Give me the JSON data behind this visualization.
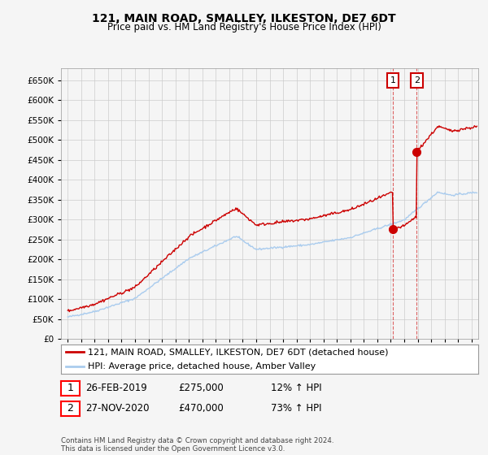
{
  "title": "121, MAIN ROAD, SMALLEY, ILKESTON, DE7 6DT",
  "subtitle": "Price paid vs. HM Land Registry's House Price Index (HPI)",
  "yticks": [
    0,
    50000,
    100000,
    150000,
    200000,
    250000,
    300000,
    350000,
    400000,
    450000,
    500000,
    550000,
    600000,
    650000
  ],
  "ylim": [
    0,
    680000
  ],
  "xlim_start": 1994.5,
  "xlim_end": 2025.5,
  "grid_color": "#cccccc",
  "background_color": "#f5f5f5",
  "plot_bg_color": "#f5f5f5",
  "red_line_color": "#cc0000",
  "blue_line_color": "#aaccee",
  "sale1_x": 2019.15,
  "sale1_y": 275000,
  "sale2_x": 2020.92,
  "sale2_y": 470000,
  "legend_label1": "121, MAIN ROAD, SMALLEY, ILKESTON, DE7 6DT (detached house)",
  "legend_label2": "HPI: Average price, detached house, Amber Valley",
  "annotation1_label": "1",
  "annotation2_label": "2",
  "table_row1": [
    "1",
    "26-FEB-2019",
    "£275,000",
    "12% ↑ HPI"
  ],
  "table_row2": [
    "2",
    "27-NOV-2020",
    "£470,000",
    "73% ↑ HPI"
  ],
  "footnote": "Contains HM Land Registry data © Crown copyright and database right 2024.\nThis data is licensed under the Open Government Licence v3.0.",
  "title_fontsize": 10,
  "subtitle_fontsize": 8.5,
  "tick_fontsize": 7.5,
  "legend_fontsize": 8,
  "table_fontsize": 8.5
}
